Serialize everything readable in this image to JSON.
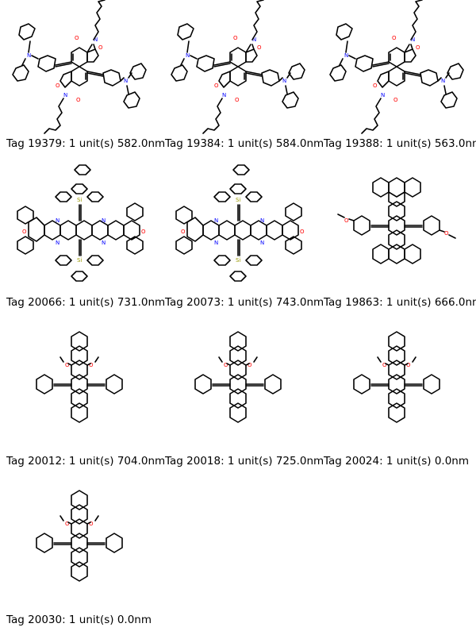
{
  "molecules": [
    {
      "legend": "Tag 19379: 1 unit(s) 582.0nm",
      "icon": "imide-diarylamine-alkyne-molecule"
    },
    {
      "legend": "Tag 19384: 1 unit(s) 584.0nm",
      "icon": "imide-diarylamine-alkyne-molecule"
    },
    {
      "legend": "Tag 19388: 1 unit(s) 563.0nm",
      "icon": "imide-diarylamine-alkyne-molecule"
    },
    {
      "legend": "Tag 20066: 1 unit(s) 731.0nm",
      "icon": "silyl-acene-phenazine-molecule"
    },
    {
      "legend": "Tag 20073: 1 unit(s) 743.0nm",
      "icon": "silyl-acene-phenazine-molecule"
    },
    {
      "legend": "Tag 19863: 1 unit(s) 666.0nm",
      "icon": "methoxyphenyl-alkyne-acene-molecule"
    },
    {
      "legend": "Tag 20012: 1 unit(s) 704.0nm",
      "icon": "dimethoxy-phenylethynyl-acene-molecule"
    },
    {
      "legend": "Tag 20018: 1 unit(s) 725.0nm",
      "icon": "dimethoxy-phenylethynyl-acene-molecule"
    },
    {
      "legend": "Tag 20024: 1 unit(s) 0.0nm",
      "icon": "dimethoxy-phenylethynyl-acene-molecule"
    },
    {
      "legend": "Tag 20030: 1 unit(s) 0.0nm",
      "icon": "dimethoxy-phenylethynyl-acene-molecule"
    }
  ]
}
